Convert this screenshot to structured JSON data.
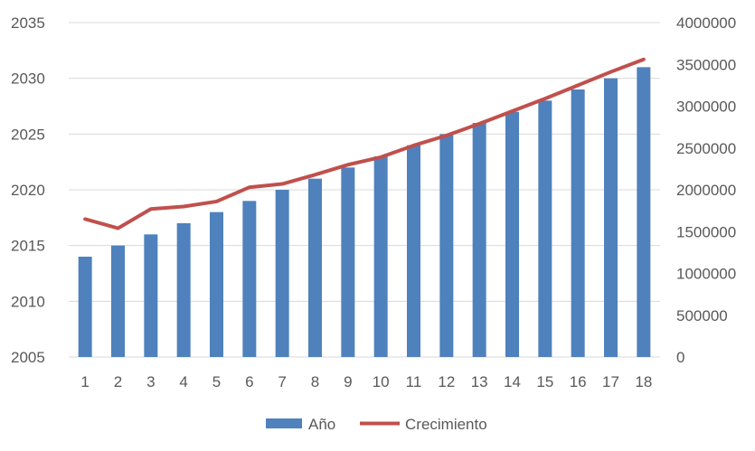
{
  "chart_data": {
    "type": "bar",
    "categories": [
      "1",
      "2",
      "3",
      "4",
      "5",
      "6",
      "7",
      "8",
      "9",
      "10",
      "11",
      "12",
      "13",
      "14",
      "15",
      "16",
      "17",
      "18"
    ],
    "series": [
      {
        "name": "Año",
        "type": "bar",
        "axis": "left",
        "color": "#4F81BD",
        "values": [
          2014,
          2015,
          2016,
          2017,
          2018,
          2019,
          2020,
          2021,
          2022,
          2023,
          2024,
          2025,
          2026,
          2027,
          2028,
          2029,
          2030,
          2031
        ]
      },
      {
        "name": "Crecimiento",
        "type": "line",
        "axis": "right",
        "color": "#C0504D",
        "values": [
          1650000,
          1540000,
          1770000,
          1800000,
          1860000,
          2030000,
          2070000,
          2180000,
          2300000,
          2390000,
          2530000,
          2650000,
          2790000,
          2940000,
          3090000,
          3250000,
          3410000,
          3560000
        ]
      }
    ],
    "y_left": {
      "min": 2005,
      "max": 2035,
      "ticks": [
        2005,
        2010,
        2015,
        2020,
        2025,
        2030,
        2035
      ]
    },
    "y_right": {
      "min": 0,
      "max": 4000000,
      "ticks": [
        0,
        500000,
        1000000,
        1500000,
        2000000,
        2500000,
        3000000,
        3500000,
        4000000
      ]
    },
    "grid": true,
    "legend_position": "bottom",
    "gridline_color": "#D9D9D9"
  }
}
